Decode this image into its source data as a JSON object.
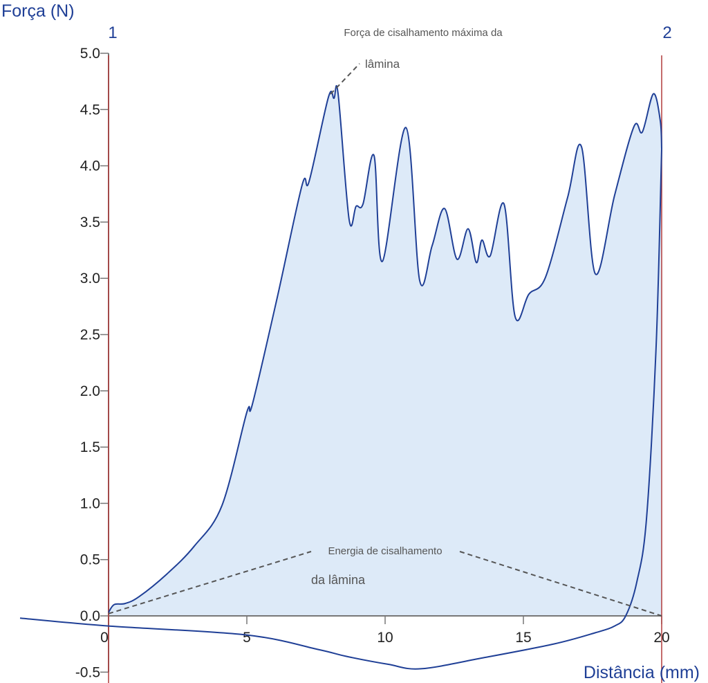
{
  "chart_data": {
    "type": "area",
    "ylabel": "Força (N)",
    "xlabel": "Distância (mm)",
    "xlim": [
      -3.2,
      20.5
    ],
    "ylim": [
      -0.5,
      5.0
    ],
    "x_ticks": [
      0,
      5,
      10,
      15,
      20
    ],
    "x_tick_labels": [
      "0",
      "5",
      "10",
      "15",
      "20"
    ],
    "y_ticks": [
      -0.5,
      0,
      0.5,
      1,
      1.5,
      2,
      2.5,
      3,
      3.5,
      4,
      4.5,
      5
    ],
    "y_tick_labels": [
      "-0.5",
      "0.0",
      "0.5",
      "1.0",
      "1.5",
      "2.0",
      "2.5",
      "3.0",
      "3.5",
      "4.0",
      "4.5",
      "5.0"
    ],
    "markers": [
      {
        "label": "1",
        "x": 0
      },
      {
        "label": "2",
        "x": 20
      }
    ],
    "annotations": {
      "peak_line1": "Força de cisalhamento máxima da",
      "peak_line2": "lâmina",
      "energy_line1": "Energia de cisalhamento",
      "energy_line2": "da lâmina"
    },
    "colors": {
      "curve": "#1f3f96",
      "fill": "#ddeaf8",
      "marker": "#b03a3a",
      "label": "#1f3f96"
    },
    "loading": {
      "x": [
        0,
        0.2,
        0.6,
        1.1,
        2.1,
        3.1,
        4.1,
        5.0,
        5.2,
        6.1,
        7.0,
        7.25,
        7.95,
        8.15,
        8.3,
        8.7,
        8.95,
        9.2,
        9.6,
        9.9,
        10.75,
        11.25,
        11.7,
        12.15,
        12.6,
        13.0,
        13.3,
        13.5,
        13.8,
        14.3,
        14.7,
        15.2,
        15.8,
        16.6,
        17.1,
        17.6,
        18.3,
        19.0,
        19.3,
        19.7,
        19.95,
        20
      ],
      "y": [
        0.03,
        0.1,
        0.11,
        0.17,
        0.37,
        0.62,
        0.98,
        1.81,
        1.88,
        2.83,
        3.83,
        3.86,
        4.61,
        4.6,
        4.64,
        3.52,
        3.64,
        3.66,
        4.09,
        3.15,
        4.34,
        2.98,
        3.29,
        3.62,
        3.17,
        3.44,
        3.14,
        3.34,
        3.2,
        3.66,
        2.66,
        2.86,
        3.01,
        3.72,
        4.17,
        3.04,
        3.74,
        4.35,
        4.3,
        4.64,
        4.4,
        4.15
      ]
    },
    "unloading": {
      "x": [
        20,
        19.8,
        19.45,
        19.1,
        18.7,
        18.3,
        17.6,
        16.1,
        13.6,
        11.3,
        10.1,
        8.6,
        7.6,
        5.0,
        0,
        -3.2
      ],
      "y": [
        4.15,
        2.4,
        0.86,
        0.3,
        0.0,
        -0.09,
        -0.15,
        -0.25,
        -0.37,
        -0.47,
        -0.43,
        -0.36,
        -0.3,
        -0.17,
        -0.09,
        -0.02
      ]
    }
  }
}
